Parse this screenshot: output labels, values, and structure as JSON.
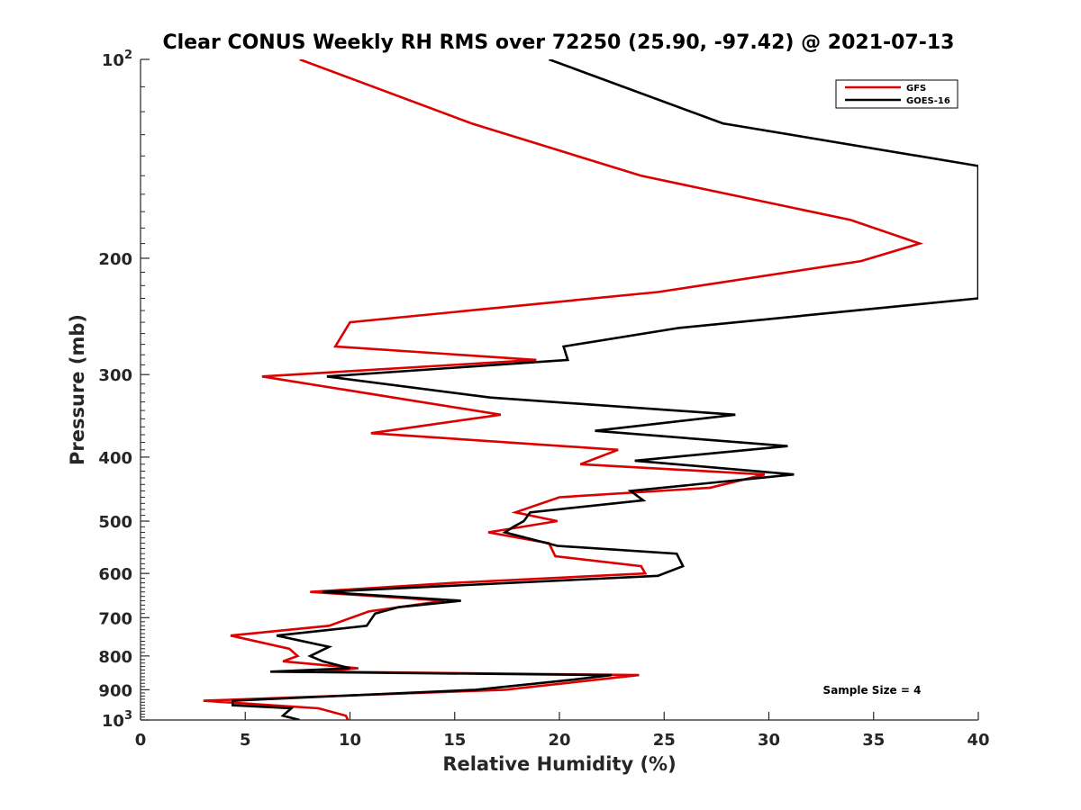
{
  "chart_data": {
    "type": "line",
    "title": "Clear CONUS Weekly RH RMS over 72250 (25.90, -97.42) @ 2021-07-13",
    "xlabel": "Relative Humidity (%)",
    "ylabel": "Pressure (mb)",
    "xlim": [
      0,
      40
    ],
    "ylim": [
      100,
      1000
    ],
    "y_scale": "log",
    "y_reversed": true,
    "x_ticks": [
      "0",
      "5",
      "10",
      "15",
      "20",
      "25",
      "30",
      "35",
      "40"
    ],
    "y_ticks": [
      {
        "value": 100,
        "base": "10",
        "exp": "2"
      },
      {
        "value": 200,
        "label": "200"
      },
      {
        "value": 300,
        "label": "300"
      },
      {
        "value": 400,
        "label": "400"
      },
      {
        "value": 500,
        "label": "500"
      },
      {
        "value": 600,
        "label": "600"
      },
      {
        "value": 700,
        "label": "700"
      },
      {
        "value": 800,
        "label": "800"
      },
      {
        "value": 900,
        "label": "900"
      },
      {
        "value": 1000,
        "base": "10",
        "exp": "3"
      }
    ],
    "legend": {
      "position": "top-right"
    },
    "annotation": "Sample Size = 4",
    "series": [
      {
        "name": "GFS",
        "color": "#dd0000",
        "points": [
          {
            "x": 7.6,
            "y": 100
          },
          {
            "x": 15.8,
            "y": 125
          },
          {
            "x": 23.9,
            "y": 150
          },
          {
            "x": 33.9,
            "y": 175
          },
          {
            "x": 37.2,
            "y": 190
          },
          {
            "x": 34.4,
            "y": 202
          },
          {
            "x": 24.7,
            "y": 225
          },
          {
            "x": 10.0,
            "y": 250
          },
          {
            "x": 9.3,
            "y": 272
          },
          {
            "x": 18.9,
            "y": 285
          },
          {
            "x": 5.8,
            "y": 302
          },
          {
            "x": 17.2,
            "y": 345
          },
          {
            "x": 11.0,
            "y": 368
          },
          {
            "x": 22.8,
            "y": 390
          },
          {
            "x": 21.0,
            "y": 410
          },
          {
            "x": 29.8,
            "y": 425
          },
          {
            "x": 27.2,
            "y": 445
          },
          {
            "x": 20.0,
            "y": 460
          },
          {
            "x": 17.9,
            "y": 485
          },
          {
            "x": 19.9,
            "y": 500
          },
          {
            "x": 16.6,
            "y": 520
          },
          {
            "x": 19.5,
            "y": 540
          },
          {
            "x": 19.8,
            "y": 565
          },
          {
            "x": 23.9,
            "y": 585
          },
          {
            "x": 24.1,
            "y": 600
          },
          {
            "x": 15.0,
            "y": 620
          },
          {
            "x": 8.1,
            "y": 640
          },
          {
            "x": 14.5,
            "y": 660
          },
          {
            "x": 10.9,
            "y": 685
          },
          {
            "x": 9.0,
            "y": 720
          },
          {
            "x": 4.3,
            "y": 745
          },
          {
            "x": 7.1,
            "y": 780
          },
          {
            "x": 7.5,
            "y": 800
          },
          {
            "x": 6.8,
            "y": 815
          },
          {
            "x": 10.4,
            "y": 835
          },
          {
            "x": 8.5,
            "y": 845
          },
          {
            "x": 23.8,
            "y": 855
          },
          {
            "x": 17.4,
            "y": 900
          },
          {
            "x": 3.0,
            "y": 935
          },
          {
            "x": 8.5,
            "y": 960
          },
          {
            "x": 9.8,
            "y": 985
          },
          {
            "x": 9.9,
            "y": 1000
          }
        ]
      },
      {
        "name": "GOES-16",
        "color": "#000000",
        "points": [
          {
            "x": 19.5,
            "y": 100
          },
          {
            "x": 27.8,
            "y": 125
          },
          {
            "x": 40.0,
            "y": 145
          },
          {
            "x": 40.0,
            "y": 230
          },
          {
            "x": 25.7,
            "y": 255
          },
          {
            "x": 20.2,
            "y": 272
          },
          {
            "x": 20.4,
            "y": 285
          },
          {
            "x": 8.9,
            "y": 302
          },
          {
            "x": 16.7,
            "y": 325
          },
          {
            "x": 28.4,
            "y": 345
          },
          {
            "x": 21.7,
            "y": 365
          },
          {
            "x": 30.9,
            "y": 385
          },
          {
            "x": 23.6,
            "y": 405
          },
          {
            "x": 31.2,
            "y": 425
          },
          {
            "x": 23.4,
            "y": 450
          },
          {
            "x": 24.0,
            "y": 465
          },
          {
            "x": 18.6,
            "y": 485
          },
          {
            "x": 18.3,
            "y": 500
          },
          {
            "x": 17.8,
            "y": 510
          },
          {
            "x": 17.4,
            "y": 520
          },
          {
            "x": 19.9,
            "y": 545
          },
          {
            "x": 25.6,
            "y": 560
          },
          {
            "x": 25.9,
            "y": 585
          },
          {
            "x": 24.7,
            "y": 605
          },
          {
            "x": 8.7,
            "y": 640
          },
          {
            "x": 15.3,
            "y": 660
          },
          {
            "x": 12.3,
            "y": 675
          },
          {
            "x": 11.2,
            "y": 690
          },
          {
            "x": 10.8,
            "y": 720
          },
          {
            "x": 6.5,
            "y": 745
          },
          {
            "x": 9.0,
            "y": 775
          },
          {
            "x": 8.1,
            "y": 800
          },
          {
            "x": 8.7,
            "y": 815
          },
          {
            "x": 10.0,
            "y": 835
          },
          {
            "x": 6.2,
            "y": 845
          },
          {
            "x": 22.5,
            "y": 855
          },
          {
            "x": 20.5,
            "y": 870
          },
          {
            "x": 16.0,
            "y": 900
          },
          {
            "x": 4.4,
            "y": 935
          },
          {
            "x": 4.4,
            "y": 950
          },
          {
            "x": 7.2,
            "y": 960
          },
          {
            "x": 6.8,
            "y": 985
          },
          {
            "x": 7.6,
            "y": 1000
          }
        ]
      }
    ]
  }
}
